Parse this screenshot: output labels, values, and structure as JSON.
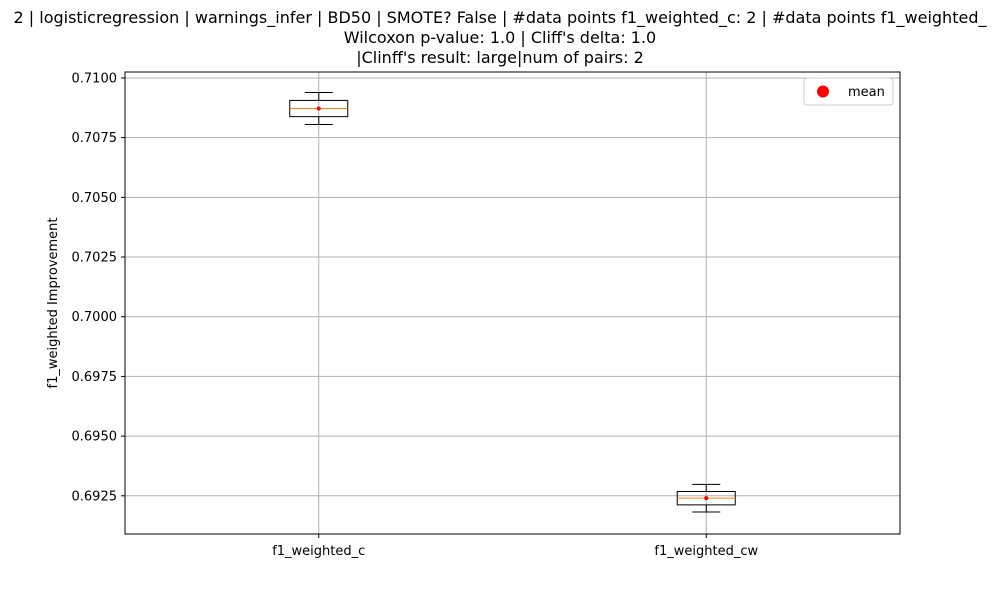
{
  "title": {
    "line1": "2 | logisticregression | warnings_infer | BD50 | SMOTE? False | #data points f1_weighted_c: 2 | #data points f1_weighted_",
    "line2": "Wilcoxon p-value: 1.0 | Cliff's delta: 1.0",
    "line3": "|Clinff's result: large|num of pairs: 2"
  },
  "chart_data": {
    "type": "box",
    "ylabel": "f1_weighted Improvement",
    "xlabel": "",
    "ylim": [
      0.6909,
      0.71025
    ],
    "yticks": [
      0.6925,
      0.695,
      0.6975,
      0.7,
      0.7025,
      0.705,
      0.7075,
      0.71
    ],
    "ytick_labels": [
      "0.6925",
      "0.6950",
      "0.6975",
      "0.7000",
      "0.7025",
      "0.7050",
      "0.7075",
      "0.7100"
    ],
    "grid": true,
    "legend": {
      "position": "top-right",
      "entries": [
        {
          "label": "mean",
          "color": "#ff0000",
          "marker": "circle"
        }
      ]
    },
    "categories": [
      "f1_weighted_c",
      "f1_weighted_cw"
    ],
    "boxes": [
      {
        "category": "f1_weighted_c",
        "whisker_low": 0.70805,
        "q1": 0.70838,
        "median": 0.70872,
        "q3": 0.70906,
        "whisker_high": 0.70939,
        "mean": 0.70872
      },
      {
        "category": "f1_weighted_cw",
        "whisker_low": 0.69182,
        "q1": 0.69212,
        "median": 0.6924,
        "q3": 0.69268,
        "whisker_high": 0.69298,
        "mean": 0.6924
      }
    ],
    "colors": {
      "box": "#000000",
      "median": "#ff7f0e",
      "mean": "#ff0000",
      "grid": "#b0b0b0"
    }
  }
}
